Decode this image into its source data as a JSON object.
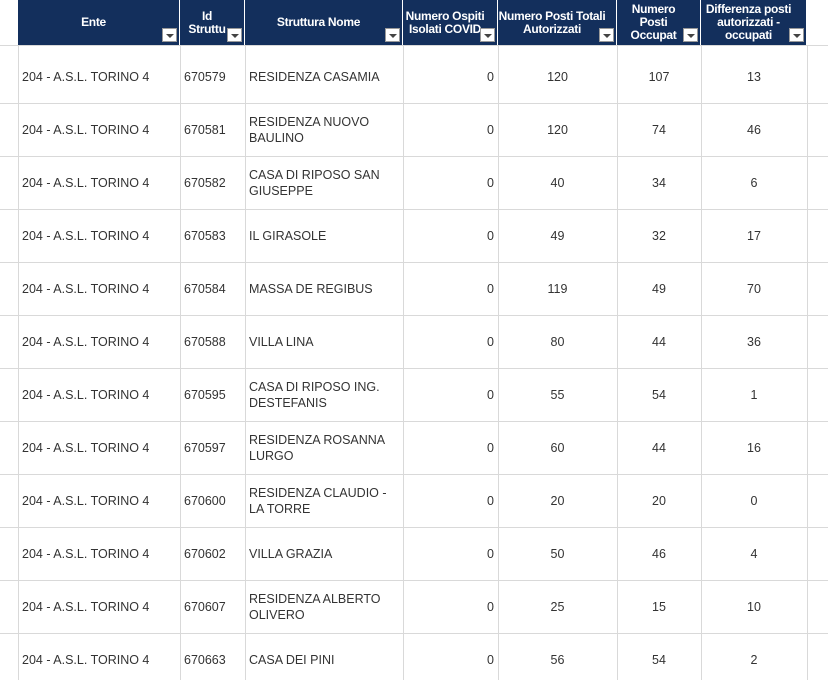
{
  "table": {
    "headers": [
      "Ente",
      "Id\nStruttu",
      "Struttura Nome",
      "Numero Ospiti\nIsolati COVID",
      "Numero Posti Totali\nAutorizzati",
      "Numero\nPosti\nOccupat",
      "Differenza posti\nautorizzati -\noccupati"
    ],
    "rows": [
      [
        "204 - A.S.L. TORINO 4",
        "670579",
        "RESIDENZA CASAMIA",
        0,
        120,
        107,
        13
      ],
      [
        "204 - A.S.L. TORINO 4",
        "670581",
        "RESIDENZA NUOVO BAULINO",
        0,
        120,
        74,
        46
      ],
      [
        "204 - A.S.L. TORINO 4",
        "670582",
        "CASA DI RIPOSO SAN GIUSEPPE",
        0,
        40,
        34,
        6
      ],
      [
        "204 - A.S.L. TORINO 4",
        "670583",
        "IL GIRASOLE",
        0,
        49,
        32,
        17
      ],
      [
        "204 - A.S.L. TORINO 4",
        "670584",
        "MASSA DE REGIBUS",
        0,
        119,
        49,
        70
      ],
      [
        "204 - A.S.L. TORINO 4",
        "670588",
        "VILLA LINA",
        0,
        80,
        44,
        36
      ],
      [
        "204 - A.S.L. TORINO 4",
        "670595",
        "CASA DI RIPOSO ING. DESTEFANIS",
        0,
        55,
        54,
        1
      ],
      [
        "204 - A.S.L. TORINO 4",
        "670597",
        "RESIDENZA ROSANNA LURGO",
        0,
        60,
        44,
        16
      ],
      [
        "204 - A.S.L. TORINO 4",
        "670600",
        "RESIDENZA CLAUDIO - LA TORRE",
        0,
        20,
        20,
        0
      ],
      [
        "204 - A.S.L. TORINO 4",
        "670602",
        "VILLA GRAZIA",
        0,
        50,
        46,
        4
      ],
      [
        "204 - A.S.L. TORINO 4",
        "670607",
        "RESIDENZA ALBERTO OLIVERO",
        0,
        25,
        15,
        10
      ],
      [
        "204 - A.S.L. TORINO 4",
        "670663",
        "CASA DEI PINI",
        0,
        56,
        54,
        2
      ]
    ]
  }
}
